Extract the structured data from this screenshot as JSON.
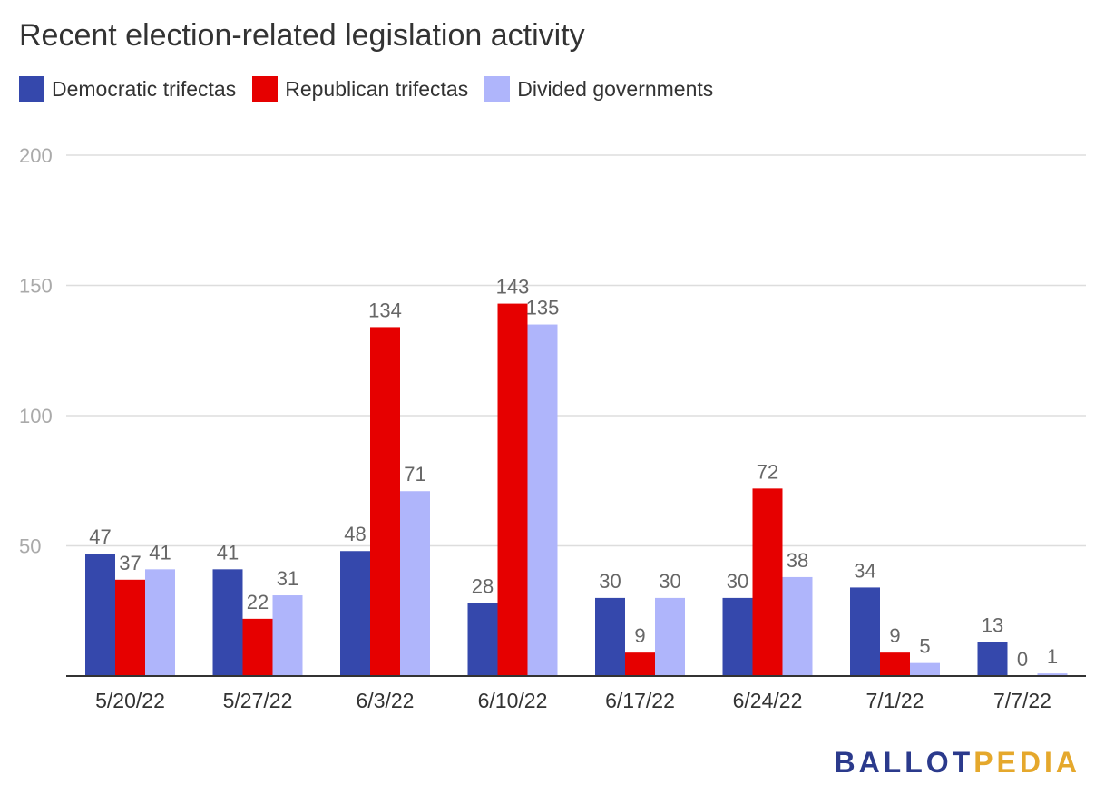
{
  "chart_data": {
    "type": "bar",
    "title": "Recent election-related legislation activity",
    "categories": [
      "5/20/22",
      "5/27/22",
      "6/3/22",
      "6/10/22",
      "6/17/22",
      "6/24/22",
      "7/1/22",
      "7/7/22"
    ],
    "series": [
      {
        "name": "Democratic trifectas",
        "color": "#3548ac",
        "values": [
          47,
          41,
          48,
          28,
          30,
          30,
          34,
          13
        ]
      },
      {
        "name": "Republican trifectas",
        "color": "#e60000",
        "values": [
          37,
          22,
          134,
          143,
          9,
          72,
          9,
          0
        ]
      },
      {
        "name": "Divided governments",
        "color": "#afb5fb",
        "values": [
          41,
          31,
          71,
          135,
          30,
          38,
          5,
          1
        ]
      }
    ],
    "ylim": [
      0,
      200
    ],
    "yticks": [
      50,
      100,
      150,
      200
    ],
    "grid": true,
    "legend": "top-left",
    "data_labels": true
  },
  "logo": {
    "part1": "BALLOT",
    "part2": "PEDIA"
  }
}
